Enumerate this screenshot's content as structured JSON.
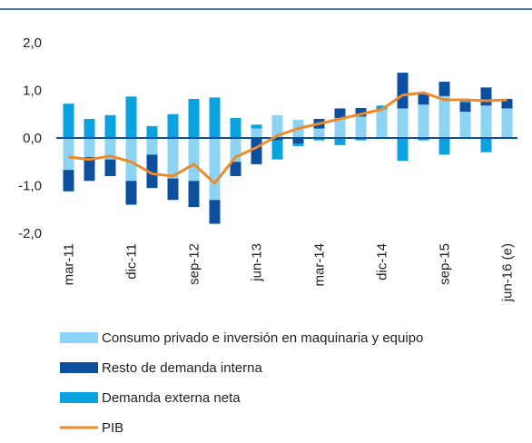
{
  "chart_data": {
    "type": "bar",
    "stacked": true,
    "categories": [
      "mar-11",
      null,
      null,
      "dic-11",
      null,
      null,
      "sep-12",
      null,
      null,
      "jun-13",
      null,
      null,
      "mar-14",
      null,
      null,
      "dic-14",
      null,
      null,
      "sep-15",
      null,
      null,
      "jun-16 (e)"
    ],
    "ylim": [
      -2,
      2
    ],
    "yticks": [
      {
        "value": -2,
        "label": "-2,0"
      },
      {
        "value": -1,
        "label": "-1,0"
      },
      {
        "value": 0,
        "label": "0,0"
      },
      {
        "value": 1,
        "label": "1,0"
      },
      {
        "value": 2,
        "label": "2,0"
      }
    ],
    "series": [
      {
        "name": "Consumo privado e inversión en maquinaria y equipo",
        "color": "#8dd3f3",
        "type": "bar",
        "values": [
          -0.67,
          -0.4,
          -0.45,
          -0.9,
          -0.35,
          -0.85,
          -0.9,
          -1.3,
          -0.5,
          0.2,
          0.48,
          0.38,
          0.2,
          0.42,
          0.45,
          0.6,
          0.62,
          0.7,
          0.88,
          0.55,
          0.68,
          0.62
        ]
      },
      {
        "name": "Resto de demanda interna",
        "color": "#0b4f9e",
        "type": "bar",
        "values": [
          -0.45,
          -0.5,
          -0.35,
          -0.5,
          -0.7,
          -0.45,
          -0.55,
          -0.5,
          -0.3,
          -0.55,
          -0.05,
          -0.12,
          0.2,
          0.2,
          0.18,
          0.0,
          0.75,
          0.22,
          0.3,
          0.2,
          0.38,
          0.2
        ]
      },
      {
        "name": "Demanda externa neta",
        "color": "#0ba2e0",
        "type": "bar",
        "values": [
          0.72,
          0.4,
          0.48,
          0.87,
          0.25,
          0.5,
          0.82,
          0.85,
          0.42,
          0.08,
          -0.4,
          -0.05,
          -0.05,
          -0.15,
          -0.05,
          0.08,
          -0.48,
          -0.05,
          -0.35,
          0.02,
          -0.3,
          0.0
        ]
      },
      {
        "name": "PIB",
        "color": "#f0892a",
        "type": "line",
        "values": [
          -0.4,
          -0.45,
          -0.38,
          -0.5,
          -0.75,
          -0.8,
          -0.55,
          -0.95,
          -0.4,
          -0.2,
          0.05,
          0.2,
          0.3,
          0.4,
          0.5,
          0.6,
          0.9,
          0.95,
          0.8,
          0.8,
          0.78,
          0.8
        ]
      }
    ]
  }
}
